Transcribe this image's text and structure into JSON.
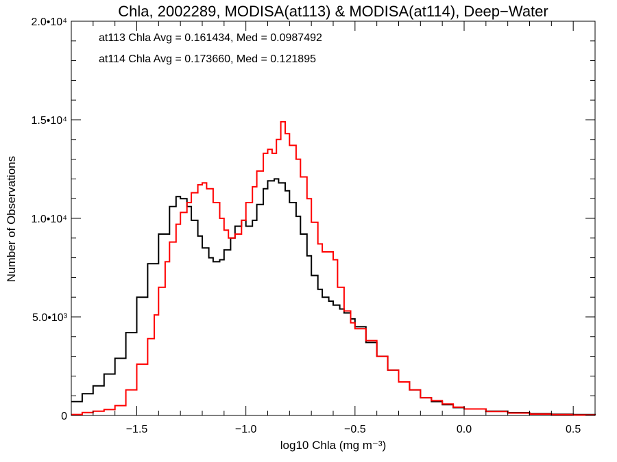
{
  "chart_data": {
    "type": "line",
    "title": "Chla, 2002289, MODISA(at113) & MODISA(at114), Deep−Water",
    "xlabel": "log10 Chla (mg m⁻³)",
    "ylabel": "Number of Observations",
    "xlim": [
      -1.8,
      0.6
    ],
    "ylim": [
      0,
      20000
    ],
    "grid": false,
    "legend": "top-left",
    "x_ticks": [
      {
        "value": -1.5,
        "label": "−1.5"
      },
      {
        "value": -1.0,
        "label": "−1.0"
      },
      {
        "value": -0.5,
        "label": "−0.5"
      },
      {
        "value": 0.0,
        "label": "0.0"
      },
      {
        "value": 0.5,
        "label": "0.5"
      }
    ],
    "y_ticks": [
      {
        "value": 0,
        "label": "0"
      },
      {
        "value": 5000,
        "label": "5.0•10³"
      },
      {
        "value": 10000,
        "label": "1.0•10⁴"
      },
      {
        "value": 15000,
        "label": "1.5•10⁴"
      },
      {
        "value": 20000,
        "label": "2.0•10⁴"
      }
    ],
    "annotations": [
      {
        "text": "at113 Chla Avg = 0.161434, Med = 0.0987492",
        "color": "#000000"
      },
      {
        "text": "at114 Chla Avg = 0.173660, Med = 0.121895",
        "color": "#ff0000"
      }
    ],
    "series": [
      {
        "color": "#000000",
        "points": [
          [
            -1.8,
            700
          ],
          [
            -1.75,
            1100
          ],
          [
            -1.7,
            1500
          ],
          [
            -1.65,
            2100
          ],
          [
            -1.6,
            2900
          ],
          [
            -1.55,
            4200
          ],
          [
            -1.5,
            6000
          ],
          [
            -1.45,
            7700
          ],
          [
            -1.4,
            9200
          ],
          [
            -1.35,
            10600
          ],
          [
            -1.32,
            11100
          ],
          [
            -1.3,
            11000
          ],
          [
            -1.27,
            10600
          ],
          [
            -1.25,
            9900
          ],
          [
            -1.22,
            9100
          ],
          [
            -1.2,
            8500
          ],
          [
            -1.17,
            8000
          ],
          [
            -1.15,
            7800
          ],
          [
            -1.12,
            7900
          ],
          [
            -1.1,
            8400
          ],
          [
            -1.07,
            9000
          ],
          [
            -1.05,
            9600
          ],
          [
            -1.02,
            9900
          ],
          [
            -1.0,
            9600
          ],
          [
            -0.97,
            9900
          ],
          [
            -0.95,
            10700
          ],
          [
            -0.92,
            11500
          ],
          [
            -0.9,
            11900
          ],
          [
            -0.87,
            12000
          ],
          [
            -0.85,
            11800
          ],
          [
            -0.82,
            11400
          ],
          [
            -0.8,
            10800
          ],
          [
            -0.77,
            10100
          ],
          [
            -0.75,
            9200
          ],
          [
            -0.72,
            8100
          ],
          [
            -0.7,
            7100
          ],
          [
            -0.67,
            6400
          ],
          [
            -0.65,
            6000
          ],
          [
            -0.62,
            5800
          ],
          [
            -0.6,
            5600
          ],
          [
            -0.57,
            5400
          ],
          [
            -0.55,
            5200
          ],
          [
            -0.52,
            4900
          ],
          [
            -0.5,
            4500
          ],
          [
            -0.45,
            3700
          ],
          [
            -0.4,
            3000
          ],
          [
            -0.35,
            2300
          ],
          [
            -0.3,
            1700
          ],
          [
            -0.25,
            1300
          ],
          [
            -0.2,
            900
          ],
          [
            -0.15,
            700
          ],
          [
            -0.1,
            550
          ],
          [
            -0.05,
            400
          ],
          [
            0.0,
            330
          ],
          [
            0.1,
            220
          ],
          [
            0.2,
            140
          ],
          [
            0.3,
            90
          ],
          [
            0.4,
            60
          ],
          [
            0.5,
            40
          ],
          [
            0.6,
            30
          ]
        ]
      },
      {
        "color": "#ff0000",
        "points": [
          [
            -1.8,
            50
          ],
          [
            -1.75,
            150
          ],
          [
            -1.7,
            220
          ],
          [
            -1.65,
            300
          ],
          [
            -1.6,
            500
          ],
          [
            -1.55,
            1300
          ],
          [
            -1.5,
            2600
          ],
          [
            -1.45,
            3900
          ],
          [
            -1.42,
            5100
          ],
          [
            -1.4,
            6500
          ],
          [
            -1.37,
            7800
          ],
          [
            -1.35,
            8800
          ],
          [
            -1.32,
            9700
          ],
          [
            -1.3,
            10300
          ],
          [
            -1.27,
            10800
          ],
          [
            -1.25,
            11300
          ],
          [
            -1.22,
            11700
          ],
          [
            -1.2,
            11800
          ],
          [
            -1.18,
            11500
          ],
          [
            -1.15,
            10800
          ],
          [
            -1.12,
            10000
          ],
          [
            -1.1,
            9400
          ],
          [
            -1.08,
            9000
          ],
          [
            -1.05,
            9200
          ],
          [
            -1.02,
            9900
          ],
          [
            -1.0,
            10800
          ],
          [
            -0.97,
            11600
          ],
          [
            -0.95,
            12400
          ],
          [
            -0.92,
            13300
          ],
          [
            -0.9,
            13500
          ],
          [
            -0.88,
            13300
          ],
          [
            -0.86,
            14000
          ],
          [
            -0.84,
            14900
          ],
          [
            -0.82,
            14300
          ],
          [
            -0.8,
            13700
          ],
          [
            -0.77,
            13000
          ],
          [
            -0.75,
            12100
          ],
          [
            -0.72,
            11000
          ],
          [
            -0.7,
            9800
          ],
          [
            -0.67,
            8700
          ],
          [
            -0.65,
            8300
          ],
          [
            -0.62,
            8300
          ],
          [
            -0.6,
            7900
          ],
          [
            -0.58,
            6500
          ],
          [
            -0.55,
            5300
          ],
          [
            -0.52,
            4700
          ],
          [
            -0.5,
            4400
          ],
          [
            -0.45,
            3800
          ],
          [
            -0.4,
            3000
          ],
          [
            -0.35,
            2300
          ],
          [
            -0.3,
            1700
          ],
          [
            -0.25,
            1300
          ],
          [
            -0.2,
            900
          ],
          [
            -0.15,
            750
          ],
          [
            -0.1,
            580
          ],
          [
            -0.05,
            420
          ],
          [
            0.0,
            330
          ],
          [
            0.1,
            200
          ],
          [
            0.2,
            120
          ],
          [
            0.3,
            70
          ],
          [
            0.4,
            40
          ],
          [
            0.5,
            20
          ],
          [
            0.6,
            10
          ]
        ]
      }
    ]
  }
}
